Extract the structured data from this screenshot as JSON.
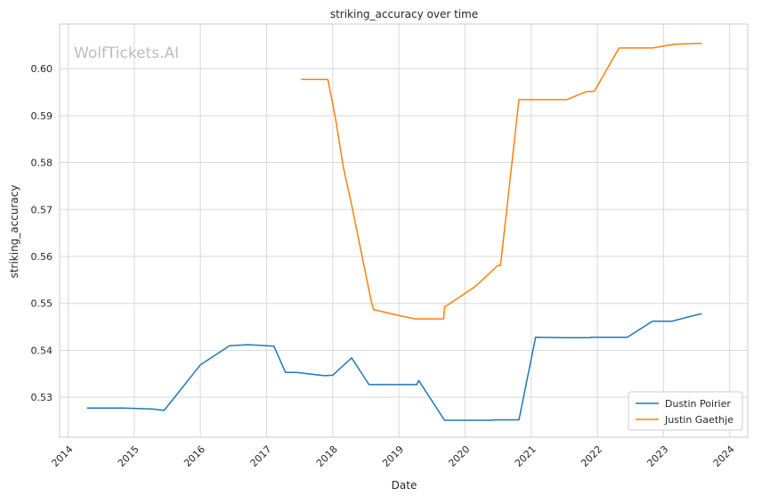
{
  "chart_data": {
    "type": "line",
    "title": "striking_accuracy over time",
    "xlabel": "Date",
    "ylabel": "striking_accuracy",
    "watermark": "WolfTickets.AI",
    "xlim": [
      "2013-11-15",
      "2024-04-10"
    ],
    "ylim": [
      0.5215,
      0.6095
    ],
    "x_ticks": [
      "2014",
      "2015",
      "2016",
      "2017",
      "2018",
      "2019",
      "2020",
      "2021",
      "2022",
      "2023",
      "2024"
    ],
    "y_ticks": [
      "0.53",
      "0.54",
      "0.55",
      "0.56",
      "0.57",
      "0.58",
      "0.59",
      "0.60"
    ],
    "y_tick_values": [
      0.53,
      0.54,
      0.55,
      0.56,
      0.57,
      0.58,
      0.59,
      0.6
    ],
    "grid": true,
    "legend_position": "lower-right",
    "series": [
      {
        "name": "Dustin Poirier",
        "color": "#1f77b4",
        "points": [
          [
            "2014-04-15",
            0.5277
          ],
          [
            "2014-11-01",
            0.5277
          ],
          [
            "2015-04-15",
            0.5275
          ],
          [
            "2015-06-15",
            0.5272
          ],
          [
            "2016-01-01",
            0.5369
          ],
          [
            "2016-06-10",
            0.541
          ],
          [
            "2016-09-20",
            0.5412
          ],
          [
            "2017-02-10",
            0.5409
          ],
          [
            "2017-04-15",
            0.5353
          ],
          [
            "2017-06-15",
            0.5353
          ],
          [
            "2017-11-15",
            0.5346
          ],
          [
            "2018-01-01",
            0.5347
          ],
          [
            "2018-04-15",
            0.5384
          ],
          [
            "2018-07-20",
            0.5327
          ],
          [
            "2019-04-10",
            0.5327
          ],
          [
            "2019-04-20",
            0.5336
          ],
          [
            "2019-09-10",
            0.5251
          ],
          [
            "2020-04-01",
            0.5251
          ],
          [
            "2020-05-20",
            0.5251
          ],
          [
            "2020-06-15",
            0.5252
          ],
          [
            "2020-10-25",
            0.5252
          ],
          [
            "2021-01-25",
            0.5428
          ],
          [
            "2021-07-15",
            0.5427
          ],
          [
            "2021-11-15",
            0.5427
          ],
          [
            "2021-12-01",
            0.5428
          ],
          [
            "2022-06-15",
            0.5428
          ],
          [
            "2022-11-01",
            0.5462
          ],
          [
            "2023-02-15",
            0.5462
          ],
          [
            "2023-06-15",
            0.5474
          ],
          [
            "2023-08-01",
            0.5478
          ]
        ]
      },
      {
        "name": "Justin Gaethje",
        "color": "#ff7f0e",
        "points": [
          [
            "2017-07-10",
            0.5977
          ],
          [
            "2017-12-05",
            0.5977
          ],
          [
            "2018-01-15",
            0.5896
          ],
          [
            "2018-03-01",
            0.5789
          ],
          [
            "2018-04-15",
            0.571
          ],
          [
            "2018-08-01",
            0.5505
          ],
          [
            "2018-08-15",
            0.5487
          ],
          [
            "2018-12-01",
            0.5477
          ],
          [
            "2019-04-01",
            0.5467
          ],
          [
            "2019-09-05",
            0.5467
          ],
          [
            "2019-09-10",
            0.5492
          ],
          [
            "2020-03-01",
            0.5537
          ],
          [
            "2020-07-01",
            0.5581
          ],
          [
            "2020-07-15",
            0.5581
          ],
          [
            "2020-10-25",
            0.5934
          ],
          [
            "2021-07-15",
            0.5934
          ],
          [
            "2021-11-01",
            0.5951
          ],
          [
            "2021-12-15",
            0.5952
          ],
          [
            "2022-05-01",
            0.6044
          ],
          [
            "2022-11-01",
            0.6044
          ],
          [
            "2023-03-01",
            0.6052
          ],
          [
            "2023-08-01",
            0.6054
          ]
        ]
      }
    ]
  }
}
